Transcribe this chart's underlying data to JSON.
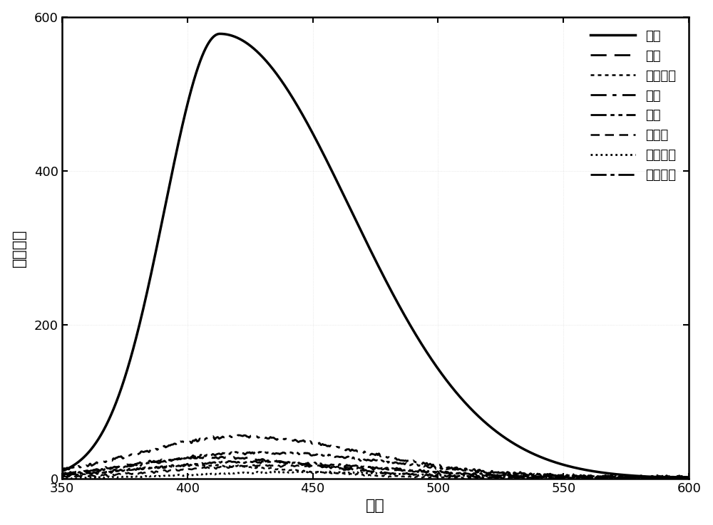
{
  "x_min": 350,
  "x_max": 600,
  "y_min": 0,
  "y_max": 600,
  "x_ticks": [
    350,
    400,
    450,
    500,
    550,
    600
  ],
  "y_ticks": [
    0,
    200,
    400,
    600
  ],
  "xlabel": "波长",
  "ylabel": "荧光强度",
  "background_color": "#ffffff",
  "series_labels": [
    "甲醇",
    "乙醇",
    "二氯甲烷",
    "丙酮",
    "乙腔",
    "正己烷",
    "四氢呗嗄",
    "乙酸乙酯"
  ],
  "linestyles": [
    "solid",
    "dashed",
    "dotted",
    "dashdot",
    "dashdotdot",
    "loosedash",
    "densedot",
    "longdashdot"
  ],
  "linewidths": [
    2.5,
    2.0,
    1.8,
    2.0,
    2.0,
    1.8,
    2.0,
    2.0
  ],
  "methanol_peak": 413,
  "methanol_amp": 578,
  "methanol_wl": 22,
  "methanol_wr": 52,
  "noise_seed": 42
}
